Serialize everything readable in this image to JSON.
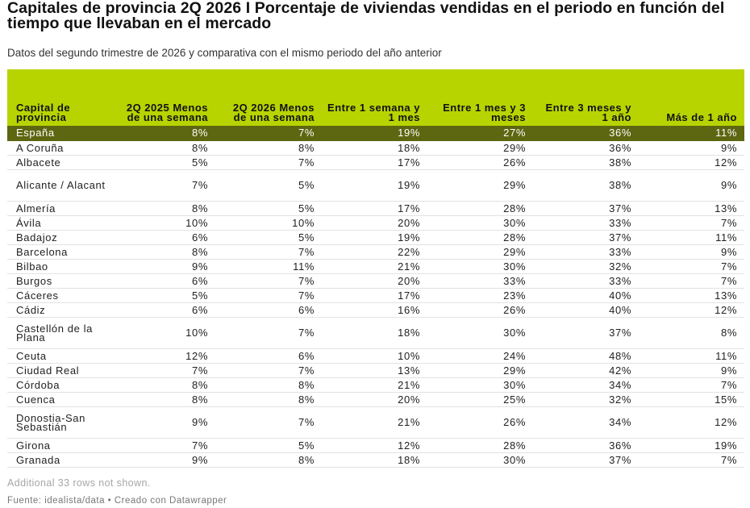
{
  "title": "Capitales de provincia 2Q 2026 I Porcentaje de viviendas vendidas en el periodo en función del tiempo que llevaban en el mercado",
  "subtitle": "Datos del segundo trimestre de 2026 y comparativa con el mismo periodo del año anterior",
  "colors": {
    "header_bg": "#b7d400",
    "highlight_row_bg": "#5d6610",
    "highlight_row_text": "#ffffff"
  },
  "chart_data": {
    "type": "table",
    "columns": [
      "Capital de provincia",
      "2Q 2025 Menos de una semana",
      "2Q 2026 Menos de una semana",
      "Entre 1 semana y 1 mes",
      "Entre 1 mes y 3 meses",
      "Entre 3 meses y 1 año",
      "Más de 1 año"
    ],
    "rows": [
      [
        "España",
        "8%",
        "7%",
        "19%",
        "27%",
        "36%",
        "11%"
      ],
      [
        "A Coruña",
        "8%",
        "8%",
        "18%",
        "29%",
        "36%",
        "9%"
      ],
      [
        "Albacete",
        "5%",
        "7%",
        "17%",
        "26%",
        "38%",
        "12%"
      ],
      [
        "Alicante / Alacant",
        "7%",
        "5%",
        "19%",
        "29%",
        "38%",
        "9%"
      ],
      [
        "Almería",
        "8%",
        "5%",
        "17%",
        "28%",
        "37%",
        "13%"
      ],
      [
        "Ávila",
        "10%",
        "10%",
        "20%",
        "30%",
        "33%",
        "7%"
      ],
      [
        "Badajoz",
        "6%",
        "5%",
        "19%",
        "28%",
        "37%",
        "11%"
      ],
      [
        "Barcelona",
        "8%",
        "7%",
        "22%",
        "29%",
        "33%",
        "9%"
      ],
      [
        "Bilbao",
        "9%",
        "11%",
        "21%",
        "30%",
        "32%",
        "7%"
      ],
      [
        "Burgos",
        "6%",
        "7%",
        "20%",
        "33%",
        "33%",
        "7%"
      ],
      [
        "Cáceres",
        "5%",
        "7%",
        "17%",
        "23%",
        "40%",
        "13%"
      ],
      [
        "Cádiz",
        "6%",
        "6%",
        "16%",
        "26%",
        "40%",
        "12%"
      ],
      [
        "Castellón de la Plana",
        "10%",
        "7%",
        "18%",
        "30%",
        "37%",
        "8%"
      ],
      [
        "Ceuta",
        "12%",
        "6%",
        "10%",
        "24%",
        "48%",
        "11%"
      ],
      [
        "Ciudad Real",
        "7%",
        "7%",
        "13%",
        "29%",
        "42%",
        "9%"
      ],
      [
        "Córdoba",
        "8%",
        "8%",
        "21%",
        "30%",
        "34%",
        "7%"
      ],
      [
        "Cuenca",
        "8%",
        "8%",
        "20%",
        "25%",
        "32%",
        "15%"
      ],
      [
        "Donostia-San Sebastián",
        "9%",
        "7%",
        "21%",
        "26%",
        "34%",
        "12%"
      ],
      [
        "Girona",
        "7%",
        "5%",
        "12%",
        "28%",
        "36%",
        "19%"
      ],
      [
        "Granada",
        "9%",
        "8%",
        "18%",
        "30%",
        "37%",
        "7%"
      ]
    ]
  },
  "note": "Additional 33 rows not shown.",
  "footer": "Fuente: idealista/data • Creado con Datawrapper"
}
